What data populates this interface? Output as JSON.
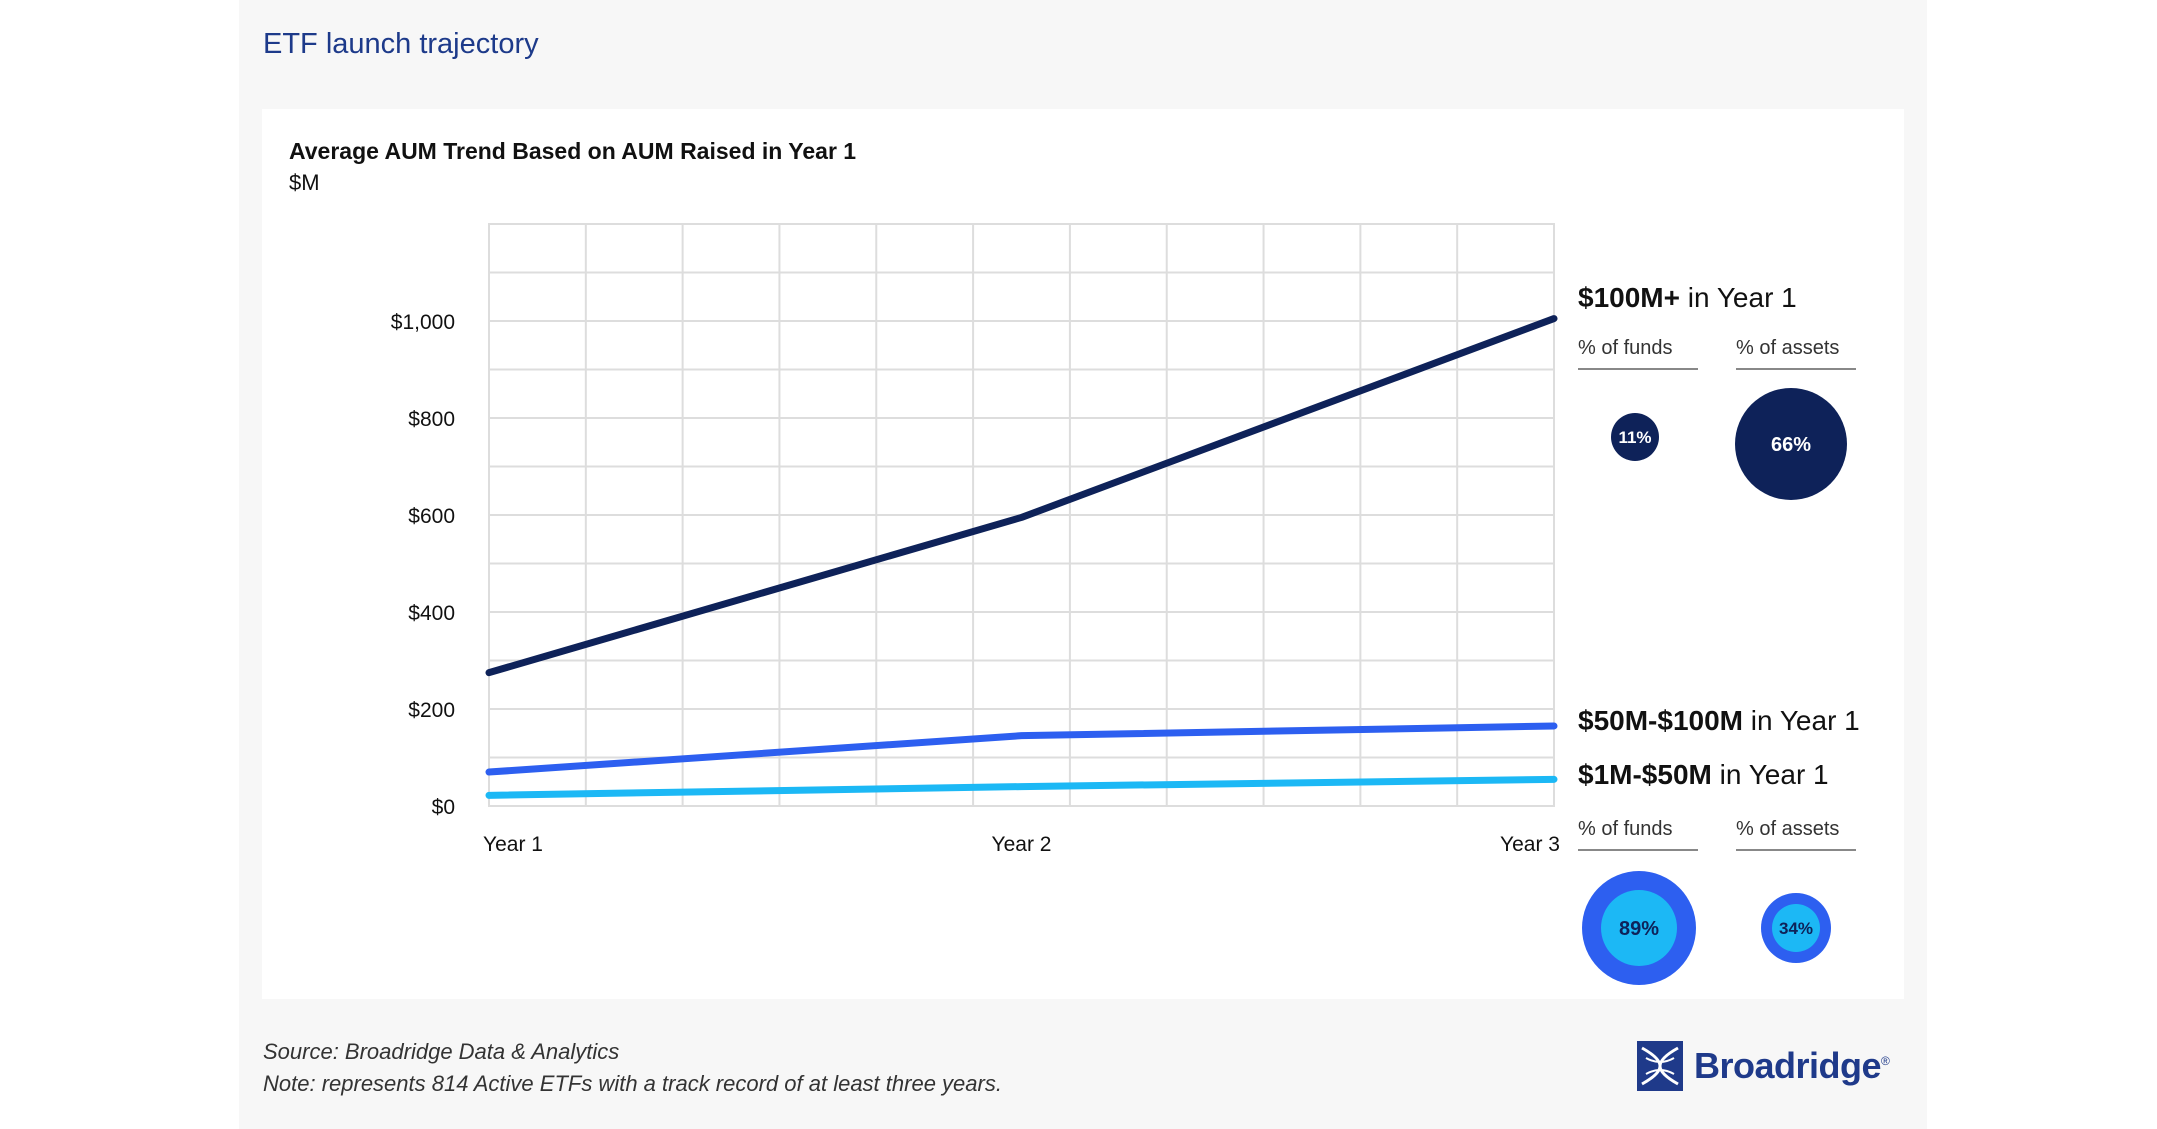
{
  "page_title": "ETF launch trajectory",
  "chart_data": {
    "type": "line",
    "title": "Average AUM Trend Based on AUM Raised in Year 1",
    "ylabel": "$M",
    "xlabel": "",
    "categories": [
      "Year 1",
      "Year 2",
      "Year 3"
    ],
    "ylim": [
      0,
      1200
    ],
    "yticks": [
      0,
      200,
      400,
      600,
      800,
      1000
    ],
    "ytick_labels": [
      "$0",
      "$200",
      "$400",
      "$600",
      "$800",
      "$1,000"
    ],
    "grid": true,
    "series": [
      {
        "name": "$100M+ in Year 1",
        "color": "#0e2259",
        "values": [
          275,
          595,
          1005
        ]
      },
      {
        "name": "$50M-$100M in Year 1",
        "color": "#2d5ff0",
        "values": [
          70,
          145,
          165
        ]
      },
      {
        "name": "$1M-$50M in Year 1",
        "color": "#1cb8f5",
        "values": [
          22,
          40,
          55
        ]
      }
    ]
  },
  "groups": {
    "top": {
      "label_bold": "$100M+",
      "label_rest": " in Year 1",
      "funds_header": "% of funds",
      "assets_header": "% of assets",
      "funds_pct": "11%",
      "assets_pct": "66%"
    },
    "mid": {
      "label_bold": "$50M-$100M",
      "label_rest": " in Year 1"
    },
    "low": {
      "label_bold": "$1M-$50M",
      "label_rest": " in Year 1",
      "funds_header": "% of funds",
      "assets_header": "% of assets",
      "funds_pct": "89%",
      "assets_pct": "34%"
    }
  },
  "colors": {
    "navy": "#0e2259",
    "blue": "#2d5ff0",
    "cyan": "#1cb8f5",
    "title": "#1d3a8a"
  },
  "footer": {
    "source": "Source: Broadridge Data & Analytics",
    "note": "Note: represents 814 Active ETFs with a track record of at least three years."
  },
  "logo": {
    "text": "Broadridge",
    "mark": "®"
  }
}
